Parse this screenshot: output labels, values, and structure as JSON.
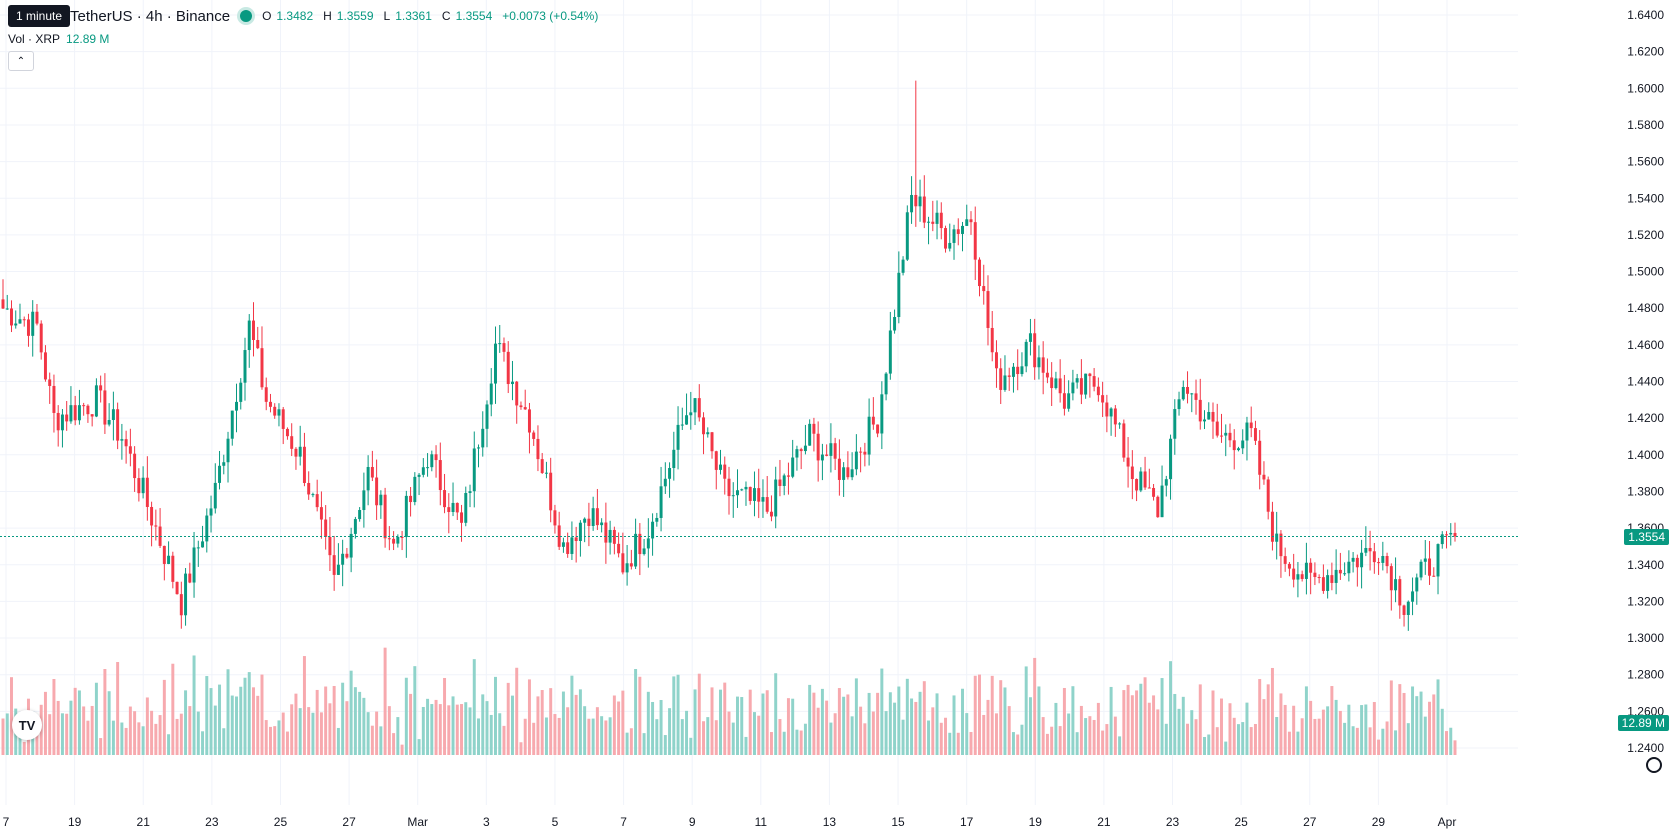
{
  "header": {
    "symbol": "TetherUS · 4h · Binance",
    "tooltip": "1 minute",
    "ohlc": {
      "o_label": "O",
      "o": "1.3482",
      "h_label": "H",
      "h": "1.3559",
      "l_label": "L",
      "l": "1.3361",
      "c_label": "C",
      "c": "1.3554",
      "change": "+0.0073 (+0.54%)"
    }
  },
  "volume_legend": {
    "label": "Vol · XRP",
    "value": "12.89 M"
  },
  "badges": {
    "price": "1.3554",
    "volume": "12.89 M"
  },
  "logo": "TV",
  "colors": {
    "up": "#089981",
    "down": "#f23645",
    "up_vol": "#8fd3ca",
    "down_vol": "#f7a9ae",
    "grid": "#f0f3fa",
    "text": "#131722"
  },
  "chart_data": {
    "type": "candlestick",
    "price_axis": {
      "ticks": [
        "1.6400",
        "1.6200",
        "1.6000",
        "1.5800",
        "1.5600",
        "1.5400",
        "1.5200",
        "1.5000",
        "1.4800",
        "1.4600",
        "1.4400",
        "1.4200",
        "1.4000",
        "1.3800",
        "1.3600",
        "1.3400",
        "1.3200",
        "1.3000",
        "1.2800",
        "1.2600",
        "1.2400"
      ],
      "range": [
        1.24,
        1.64
      ],
      "last_price": 1.3554
    },
    "time_axis": {
      "labels": [
        "7",
        "19",
        "21",
        "23",
        "25",
        "27",
        "Mar",
        "3",
        "5",
        "7",
        "9",
        "11",
        "13",
        "15",
        "17",
        "19",
        "21",
        "23",
        "25",
        "27",
        "29",
        "Apr"
      ]
    },
    "volume_range_m": [
      0,
      80
    ],
    "series_anchors": [
      {
        "t": 0,
        "c": 1.48
      },
      {
        "t": 8,
        "c": 1.47
      },
      {
        "t": 12,
        "c": 1.42
      },
      {
        "t": 22,
        "c": 1.43
      },
      {
        "t": 28,
        "c": 1.41
      },
      {
        "t": 36,
        "c": 1.36
      },
      {
        "t": 42,
        "c": 1.32
      },
      {
        "t": 50,
        "c": 1.38
      },
      {
        "t": 58,
        "c": 1.47
      },
      {
        "t": 62,
        "c": 1.43
      },
      {
        "t": 70,
        "c": 1.4
      },
      {
        "t": 78,
        "c": 1.33
      },
      {
        "t": 86,
        "c": 1.39
      },
      {
        "t": 92,
        "c": 1.35
      },
      {
        "t": 100,
        "c": 1.4
      },
      {
        "t": 108,
        "c": 1.36
      },
      {
        "t": 116,
        "c": 1.46
      },
      {
        "t": 124,
        "c": 1.42
      },
      {
        "t": 132,
        "c": 1.35
      },
      {
        "t": 138,
        "c": 1.37
      },
      {
        "t": 146,
        "c": 1.34
      },
      {
        "t": 152,
        "c": 1.36
      },
      {
        "t": 162,
        "c": 1.43
      },
      {
        "t": 170,
        "c": 1.38
      },
      {
        "t": 180,
        "c": 1.37
      },
      {
        "t": 190,
        "c": 1.41
      },
      {
        "t": 198,
        "c": 1.39
      },
      {
        "t": 206,
        "c": 1.42
      },
      {
        "t": 214,
        "c": 1.54
      },
      {
        "t": 222,
        "c": 1.52
      },
      {
        "t": 228,
        "c": 1.53
      },
      {
        "t": 234,
        "c": 1.44
      },
      {
        "t": 242,
        "c": 1.46
      },
      {
        "t": 250,
        "c": 1.43
      },
      {
        "t": 258,
        "c": 1.44
      },
      {
        "t": 266,
        "c": 1.39
      },
      {
        "t": 272,
        "c": 1.37
      },
      {
        "t": 278,
        "c": 1.44
      },
      {
        "t": 286,
        "c": 1.41
      },
      {
        "t": 294,
        "c": 1.41
      },
      {
        "t": 300,
        "c": 1.35
      },
      {
        "t": 308,
        "c": 1.33
      },
      {
        "t": 316,
        "c": 1.34
      },
      {
        "t": 324,
        "c": 1.35
      },
      {
        "t": 330,
        "c": 1.32
      },
      {
        "t": 336,
        "c": 1.34
      },
      {
        "t": 342,
        "c": 1.3554
      }
    ],
    "candle_count": 343
  }
}
